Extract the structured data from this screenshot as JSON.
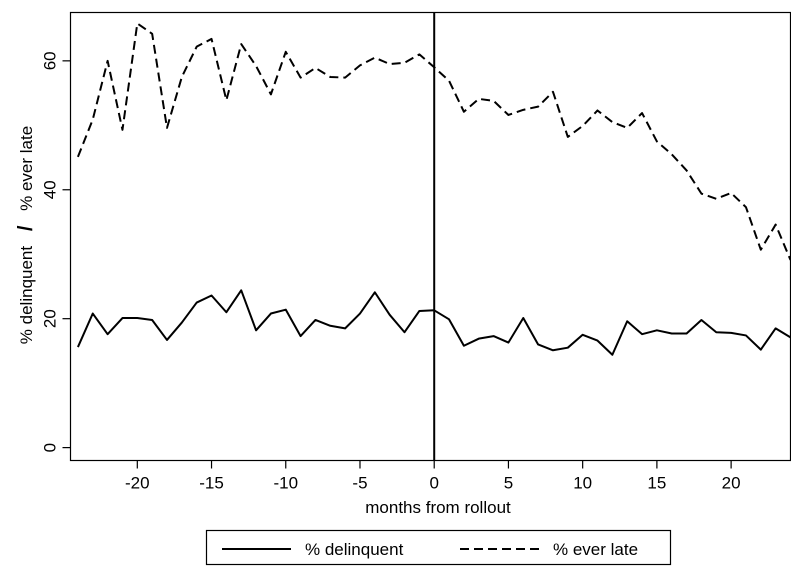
{
  "chart_data": {
    "type": "line",
    "title": "",
    "xlabel": "months from rollout",
    "ylabel_left": "% delinquent",
    "ylabel_sep": "/",
    "ylabel_right": "% ever late",
    "xlim": [
      -24.5,
      24
    ],
    "ylim": [
      -2,
      67.5
    ],
    "xticks": [
      -20,
      -15,
      -10,
      -5,
      0,
      5,
      10,
      15,
      20
    ],
    "xtick_labels": [
      "-20",
      "-15",
      "-10",
      "-5",
      "0",
      "5",
      "10",
      "15",
      "20"
    ],
    "yticks": [
      0,
      20,
      40,
      60
    ],
    "ytick_labels": [
      "0",
      "20",
      "40",
      "60"
    ],
    "grid": false,
    "reference_line_x": 0,
    "legend_position": "bottom",
    "x": [
      -24,
      -23,
      -22,
      -21,
      -20,
      -19,
      -18,
      -17,
      -16,
      -15,
      -14,
      -13,
      -12,
      -11,
      -10,
      -9,
      -8,
      -7,
      -6,
      -5,
      -4,
      -3,
      -2,
      -1,
      0,
      1,
      2,
      3,
      4,
      5,
      6,
      7,
      8,
      9,
      10,
      11,
      12,
      13,
      14,
      15,
      16,
      17,
      18,
      19,
      20,
      21,
      22,
      23,
      24
    ],
    "series": [
      {
        "name": "% delinquent",
        "style": "solid",
        "color": "#000000",
        "values": [
          15.6,
          20.8,
          17.6,
          20.1,
          20.1,
          19.8,
          16.7,
          19.4,
          22.5,
          23.6,
          21,
          24.4,
          18.2,
          20.8,
          21.4,
          17.3,
          19.8,
          18.9,
          18.5,
          20.8,
          24.1,
          20.6,
          17.9,
          21.2,
          21.3,
          19.9,
          15.8,
          16.9,
          17.3,
          16.3,
          20.1,
          16,
          15.1,
          15.5,
          17.5,
          16.6,
          14.4,
          19.6,
          17.6,
          18.2,
          17.7,
          17.7,
          19.8,
          17.9,
          17.8,
          17.4,
          15.2,
          18.5,
          17.1
        ]
      },
      {
        "name": "% ever late",
        "style": "dashed",
        "color": "#000000",
        "values": [
          45.1,
          50.9,
          60,
          49.3,
          65.8,
          64.2,
          49.6,
          57.5,
          62.2,
          63.4,
          53.9,
          62.6,
          59.2,
          54.8,
          61.4,
          57.4,
          58.9,
          57.5,
          57.4,
          59.3,
          60.5,
          59.5,
          59.7,
          61,
          59,
          56.9,
          52.1,
          54.1,
          53.8,
          51.6,
          52.4,
          52.9,
          55.2,
          48.2,
          49.9,
          52.3,
          50.5,
          49.6,
          51.9,
          47.5,
          45.5,
          43,
          39.4,
          38.6,
          39.5,
          37.3,
          30.7,
          34.6,
          29.1
        ]
      }
    ]
  }
}
